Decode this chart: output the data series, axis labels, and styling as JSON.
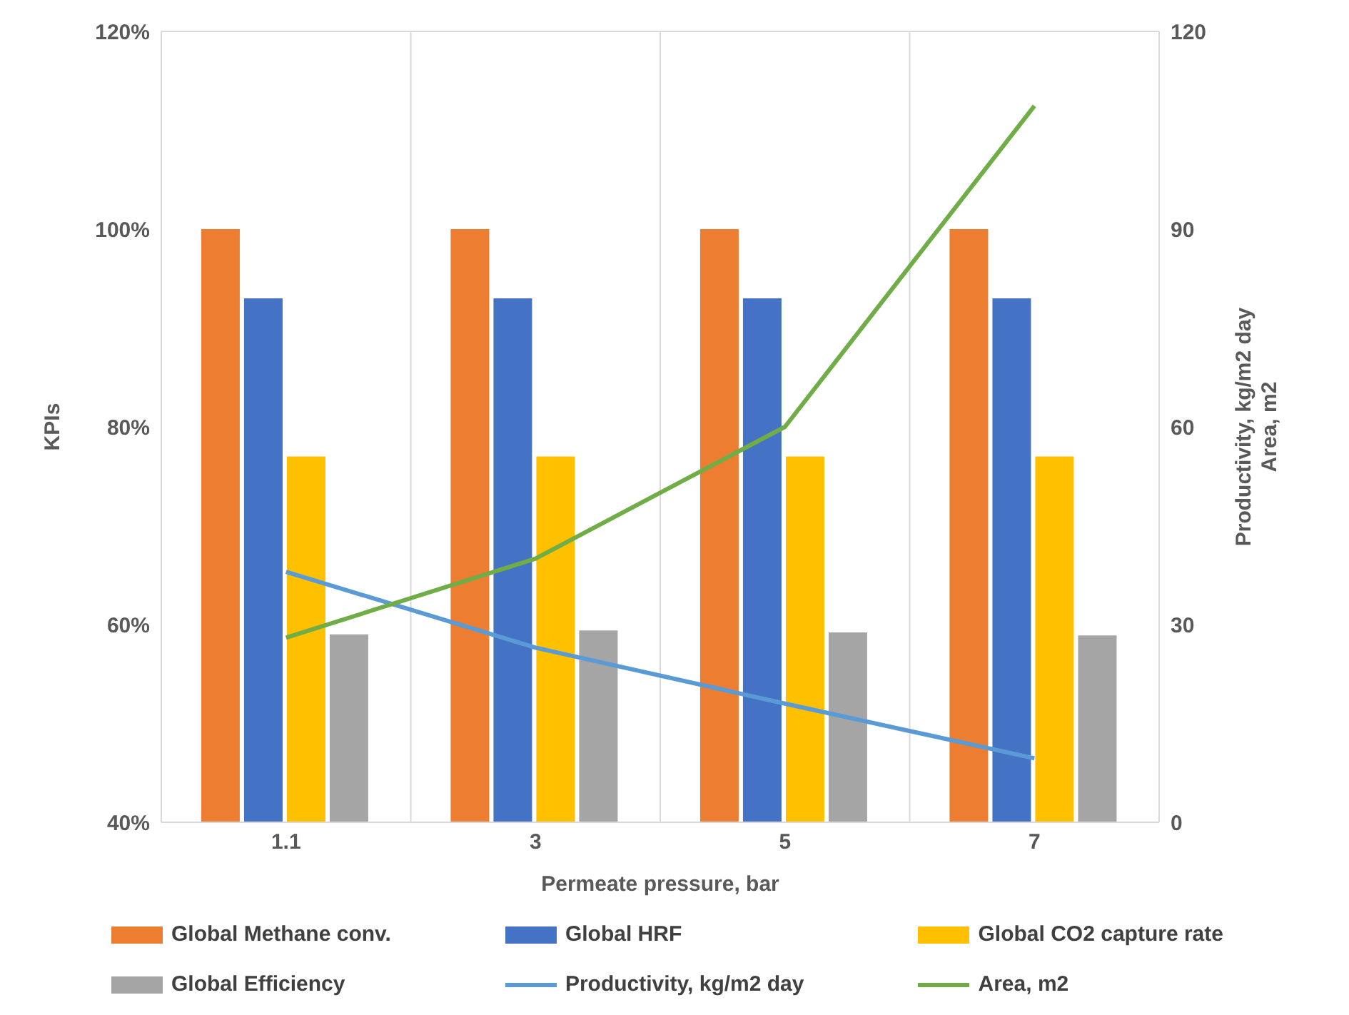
{
  "chart_data": {
    "type": "bar",
    "xlabel": "Permeate pressure, bar",
    "ylabel": "KPIs",
    "y2label": "Productivity, kg/m2 day\nArea, m2",
    "categories": [
      "1.1",
      "3",
      "5",
      "7"
    ],
    "series": [
      {
        "name": "Global Methane conv.",
        "color": "#ed7d31",
        "values": [
          100,
          100,
          100,
          100
        ]
      },
      {
        "name": "Global HRF",
        "color": "#4472c4",
        "values": [
          93,
          93,
          93,
          93
        ]
      },
      {
        "name": "Global CO2 capture rate",
        "color": "#ffc000",
        "values": [
          77,
          77,
          77,
          77
        ]
      },
      {
        "name": "Global Efficiency",
        "color": "#a5a5a5",
        "values": [
          59,
          59.4,
          59.2,
          58.9
        ]
      },
      {
        "name": "Productivity, kg/m2 day",
        "type": "line",
        "axis": "y2",
        "color": "#5b9bd5",
        "values": [
          38,
          26.5,
          18,
          9.7
        ]
      },
      {
        "name": "Area, m2",
        "type": "line",
        "axis": "y2",
        "color": "#70ad47",
        "values": [
          28,
          40,
          60,
          108.7
        ]
      }
    ],
    "ylim": [
      40,
      120
    ],
    "yticks": [
      {
        "value": 40,
        "label": "40%"
      },
      {
        "value": 60,
        "label": "60%"
      },
      {
        "value": 80,
        "label": "80%"
      },
      {
        "value": 100,
        "label": "100%"
      },
      {
        "value": 120,
        "label": "120%"
      }
    ],
    "y2lim": [
      0,
      120
    ],
    "y2ticks": [
      0,
      30,
      60,
      90,
      120
    ],
    "grid": true,
    "legend": "bottom",
    "marker": "none",
    "line_style": "solid"
  }
}
